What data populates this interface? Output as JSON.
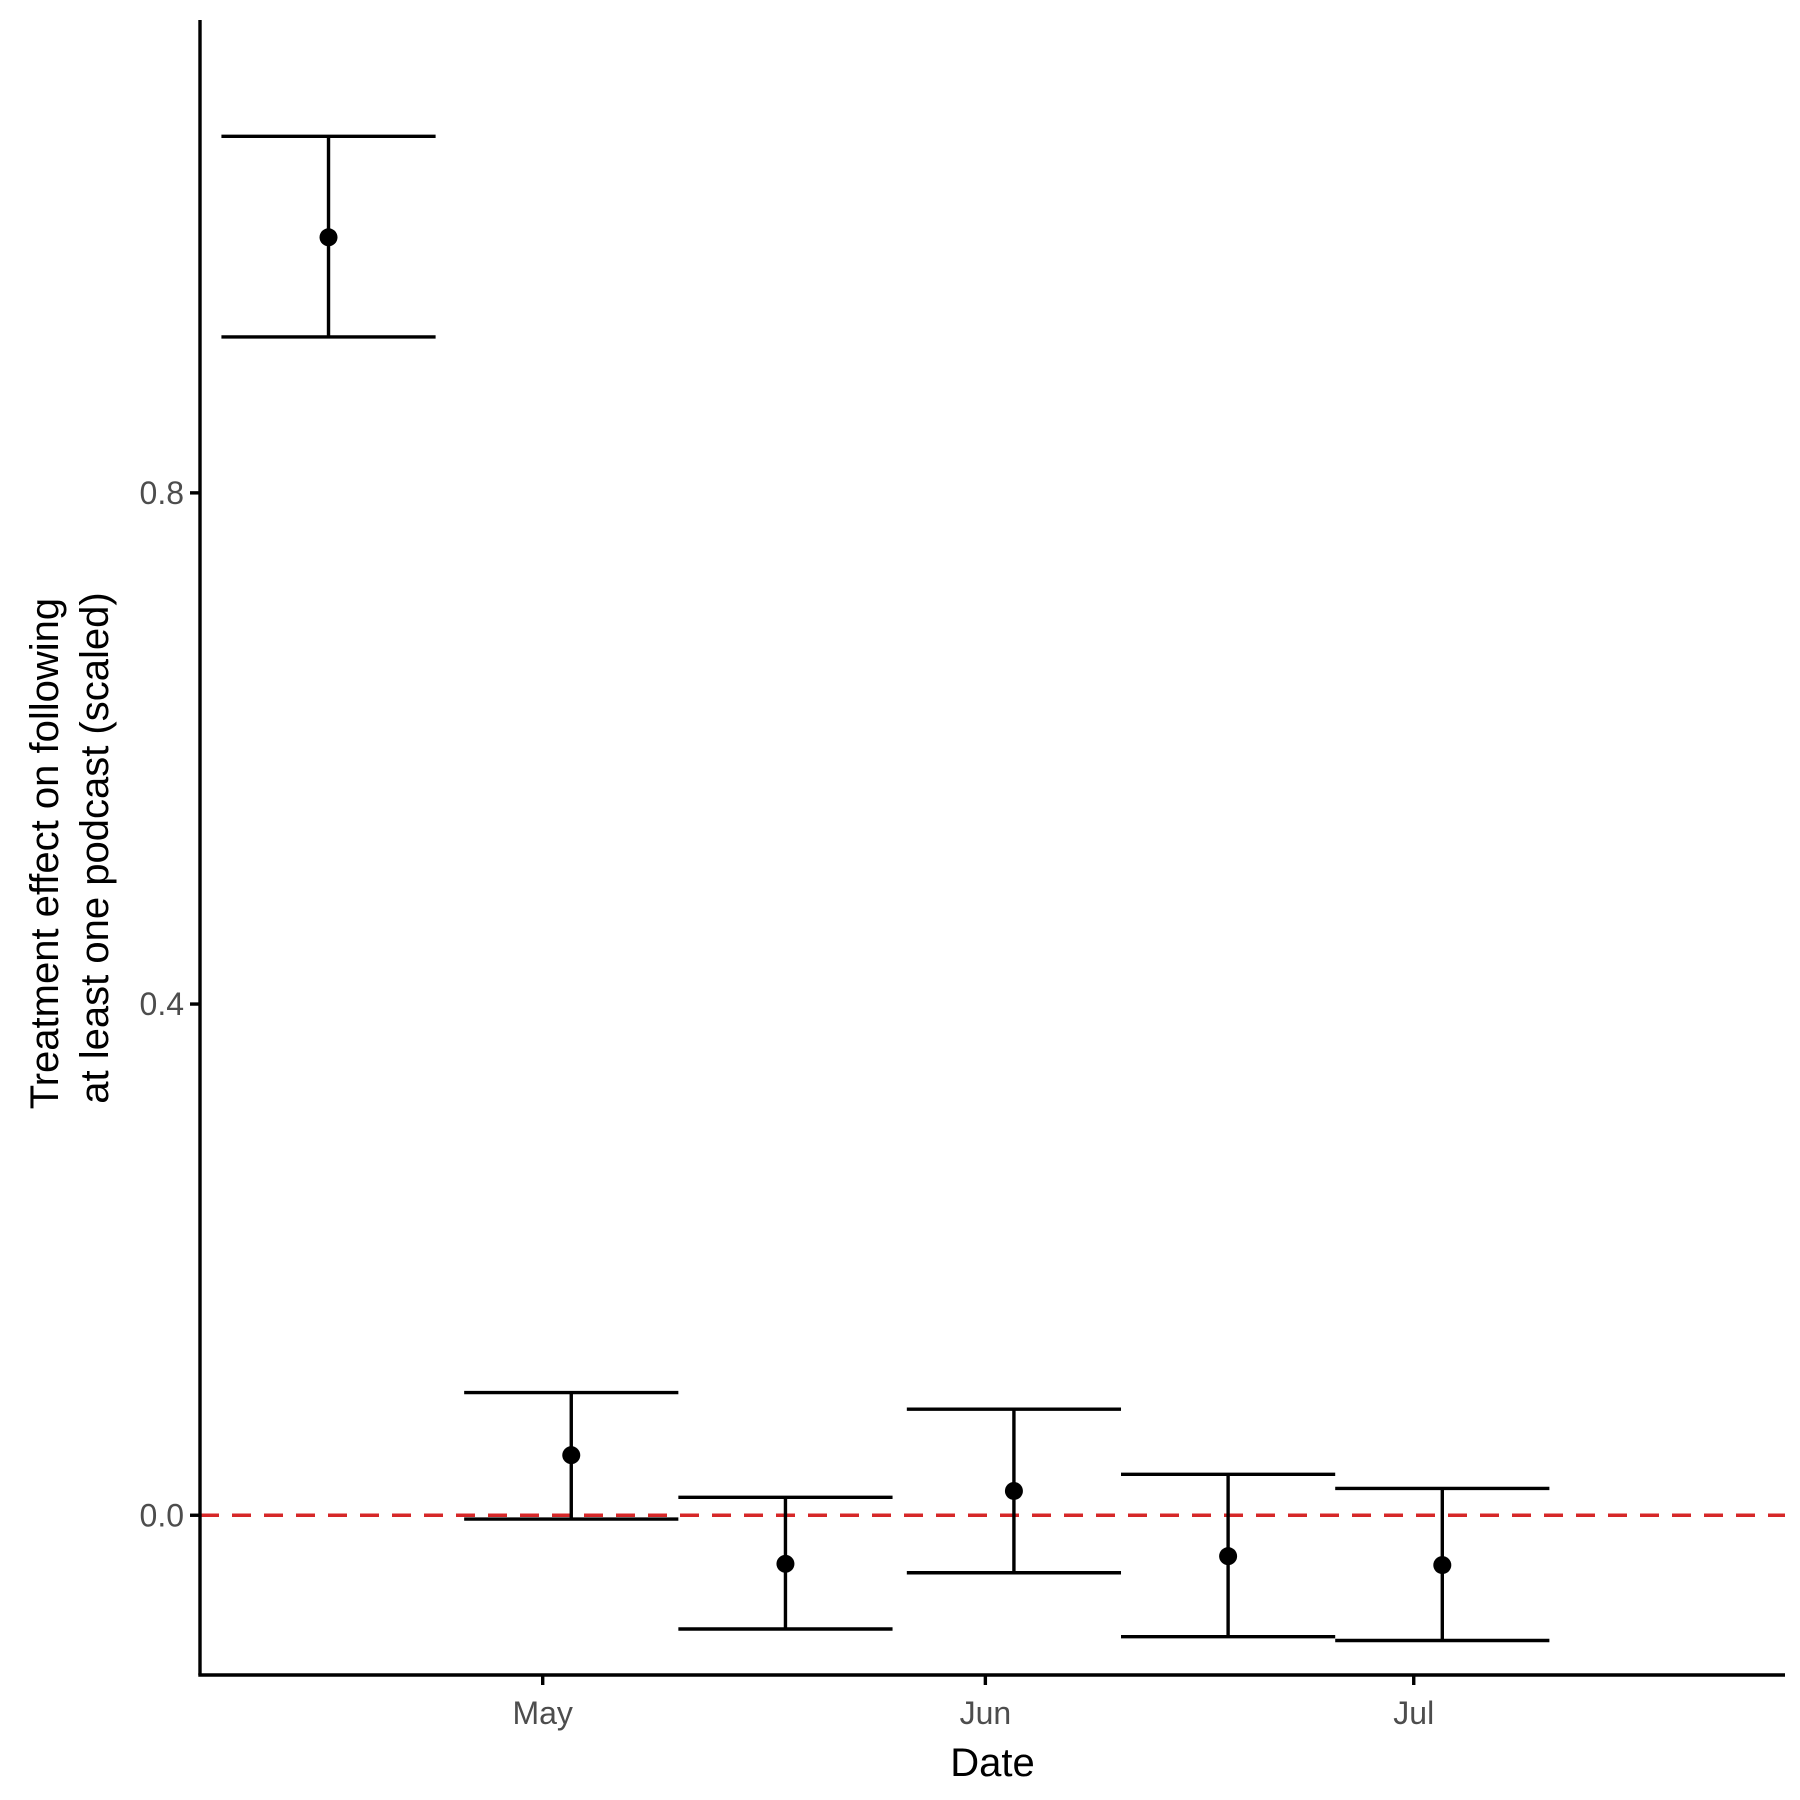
{
  "chart_data": {
    "type": "scatter",
    "title": "",
    "xlabel": "Date",
    "ylabel_lines": [
      "Treatment effect on following",
      "at least one podcast (scaled)"
    ],
    "x_type": "date",
    "xlim": [
      "2020-04-07",
      "2020-07-27"
    ],
    "ylim": [
      -0.125,
      1.17
    ],
    "x_ticks": [
      {
        "value": "2020-05-01",
        "label": "May"
      },
      {
        "value": "2020-06-01",
        "label": "Jun"
      },
      {
        "value": "2020-07-01",
        "label": "Jul"
      }
    ],
    "y_ticks": [
      {
        "value": 0.0,
        "label": "0.0"
      },
      {
        "value": 0.4,
        "label": "0.4"
      },
      {
        "value": 0.8,
        "label": "0.8"
      }
    ],
    "reference_line": {
      "y": 0.0,
      "color": "#d62728",
      "style": "dashed"
    },
    "grid": false,
    "legend": "none",
    "series": [
      {
        "points": [
          {
            "x": "2020-04-16",
            "y": 1.0,
            "ymin": 0.922,
            "ymax": 1.079
          },
          {
            "x": "2020-05-03",
            "y": 0.047,
            "ymin": -0.003,
            "ymax": 0.096
          },
          {
            "x": "2020-05-18",
            "y": -0.038,
            "ymin": -0.089,
            "ymax": 0.014
          },
          {
            "x": "2020-06-03",
            "y": 0.019,
            "ymin": -0.045,
            "ymax": 0.083
          },
          {
            "x": "2020-06-18",
            "y": -0.032,
            "ymin": -0.095,
            "ymax": 0.032
          },
          {
            "x": "2020-07-03",
            "y": -0.039,
            "ymin": -0.098,
            "ymax": 0.021
          }
        ],
        "color": "#000000"
      }
    ]
  }
}
